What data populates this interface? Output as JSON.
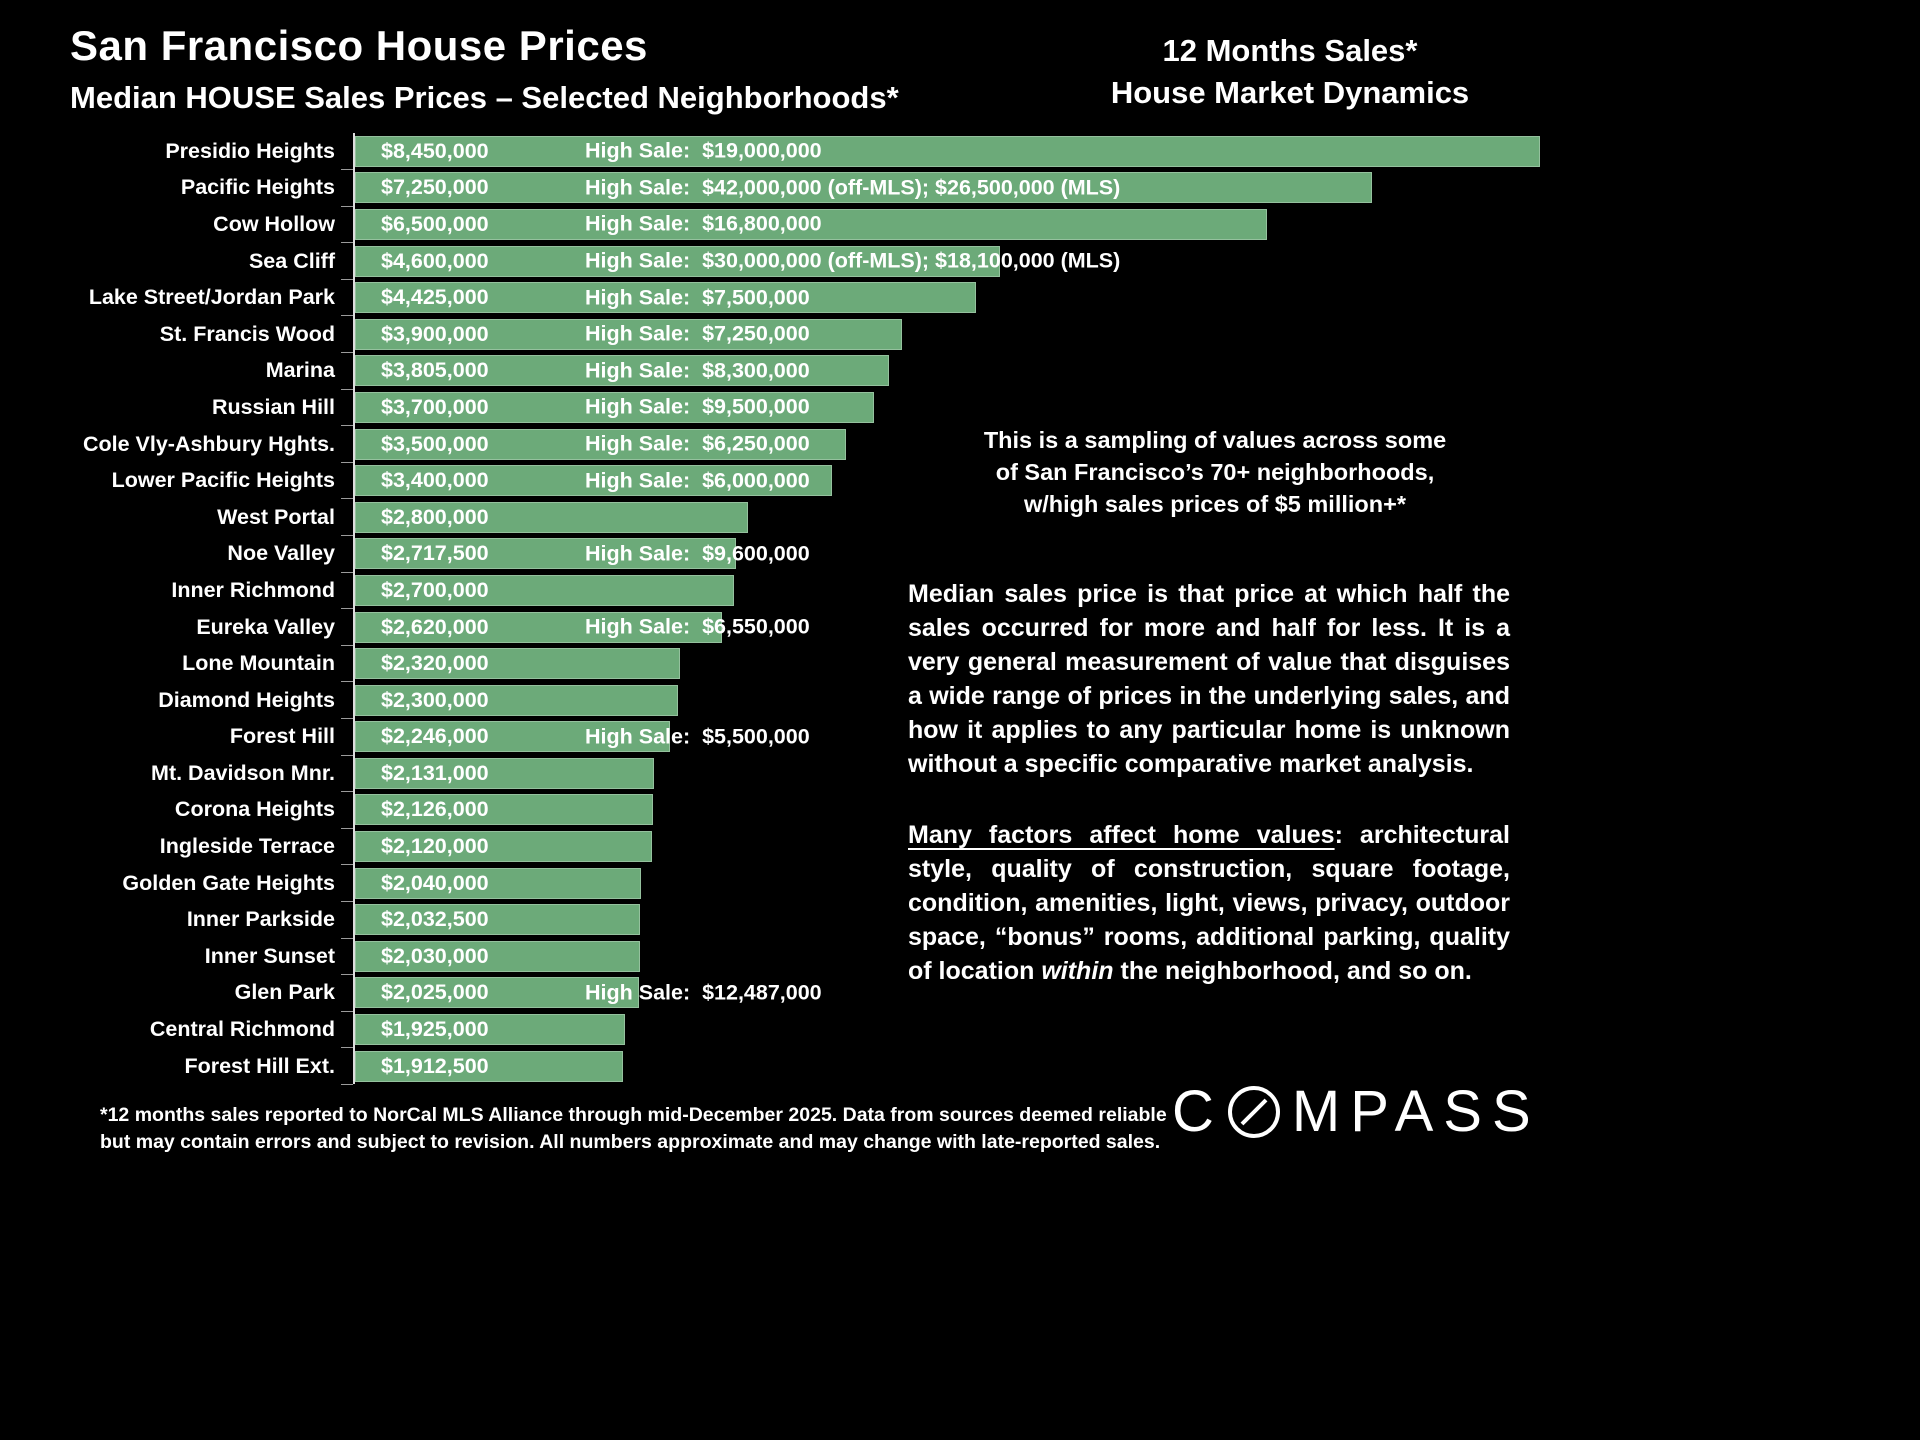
{
  "header": {
    "title": "San Francisco House Prices",
    "subtitle": "Median HOUSE Sales Prices – Selected Neighborhoods*",
    "right_line1": "12 Months Sales*",
    "right_line2": "House Market Dynamics"
  },
  "chart_data": {
    "type": "bar",
    "orientation": "horizontal",
    "title": "Median HOUSE Sales Prices – Selected Neighborhoods",
    "unit": "USD",
    "xlim": [
      0,
      8450000
    ],
    "bar_color": "#6caa79",
    "background": "#000000",
    "rows": [
      {
        "label": "Presidio Heights",
        "median": 8450000,
        "median_label": "$8,450,000",
        "high_sale": "High Sale:  $19,000,000"
      },
      {
        "label": "Pacific Heights",
        "median": 7250000,
        "median_label": "$7,250,000",
        "high_sale": "High Sale:  $42,000,000 (off-MLS); $26,500,000 (MLS)"
      },
      {
        "label": "Cow Hollow",
        "median": 6500000,
        "median_label": "$6,500,000",
        "high_sale": "High Sale:  $16,800,000"
      },
      {
        "label": "Sea Cliff",
        "median": 4600000,
        "median_label": "$4,600,000",
        "high_sale": "High Sale:  $30,000,000 (off-MLS); $18,100,000 (MLS)"
      },
      {
        "label": "Lake Street/Jordan Park",
        "median": 4425000,
        "median_label": "$4,425,000",
        "high_sale": "High Sale:  $7,500,000"
      },
      {
        "label": "St. Francis Wood",
        "median": 3900000,
        "median_label": "$3,900,000",
        "high_sale": "High Sale:  $7,250,000"
      },
      {
        "label": "Marina",
        "median": 3805000,
        "median_label": "$3,805,000",
        "high_sale": "High Sale:  $8,300,000"
      },
      {
        "label": "Russian Hill",
        "median": 3700000,
        "median_label": "$3,700,000",
        "high_sale": "High Sale:  $9,500,000"
      },
      {
        "label": "Cole Vly-Ashbury Hghts.",
        "median": 3500000,
        "median_label": "$3,500,000",
        "high_sale": "High Sale:  $6,250,000"
      },
      {
        "label": "Lower Pacific Heights",
        "median": 3400000,
        "median_label": "$3,400,000",
        "high_sale": "High Sale:  $6,000,000"
      },
      {
        "label": "West Portal",
        "median": 2800000,
        "median_label": "$2,800,000",
        "high_sale": null
      },
      {
        "label": "Noe Valley",
        "median": 2717500,
        "median_label": "$2,717,500",
        "high_sale": "High Sale:  $9,600,000"
      },
      {
        "label": "Inner Richmond",
        "median": 2700000,
        "median_label": "$2,700,000",
        "high_sale": null
      },
      {
        "label": "Eureka Valley",
        "median": 2620000,
        "median_label": "$2,620,000",
        "high_sale": "High Sale:  $6,550,000"
      },
      {
        "label": "Lone Mountain",
        "median": 2320000,
        "median_label": "$2,320,000",
        "high_sale": null
      },
      {
        "label": "Diamond Heights",
        "median": 2300000,
        "median_label": "$2,300,000",
        "high_sale": null
      },
      {
        "label": "Forest Hill",
        "median": 2246000,
        "median_label": "$2,246,000",
        "high_sale": "High Sale:  $5,500,000"
      },
      {
        "label": "Mt. Davidson Mnr.",
        "median": 2131000,
        "median_label": "$2,131,000",
        "high_sale": null
      },
      {
        "label": "Corona Heights",
        "median": 2126000,
        "median_label": "$2,126,000",
        "high_sale": null
      },
      {
        "label": "Ingleside Terrace",
        "median": 2120000,
        "median_label": "$2,120,000",
        "high_sale": null
      },
      {
        "label": "Golden Gate Heights",
        "median": 2040000,
        "median_label": "$2,040,000",
        "high_sale": null
      },
      {
        "label": "Inner Parkside",
        "median": 2032500,
        "median_label": "$2,032,500",
        "high_sale": null
      },
      {
        "label": "Inner Sunset",
        "median": 2030000,
        "median_label": "$2,030,000",
        "high_sale": null
      },
      {
        "label": "Glen Park",
        "median": 2025000,
        "median_label": "$2,025,000",
        "high_sale": "High Sale:  $12,487,000"
      },
      {
        "label": "Central Richmond",
        "median": 1925000,
        "median_label": "$1,925,000",
        "high_sale": null
      },
      {
        "label": "Forest Hill Ext.",
        "median": 1912500,
        "median_label": "$1,912,500",
        "high_sale": null
      }
    ]
  },
  "annotations": {
    "sampling_line1": "This is a sampling of values across some",
    "sampling_line2": "of San Francisco’s 70+ neighborhoods,",
    "sampling_line3": "w/high sales prices of $5 million+*",
    "median_explainer": "Median sales price is that price at which half the sales occurred for more and half for less. It is a very general measurement of value that disguises a wide range of prices in the underlying sales, and how it applies to any particular home is unknown without a specific comparative market analysis.",
    "factors_lead": "Many factors affect home values",
    "factors_mid": ": architectural style, quality of construction, square footage, condition, amenities, light, views, privacy, outdoor space, “bonus” rooms, additional parking, quality of location ",
    "factors_italic": "within",
    "factors_end": " the neighborhood, and so on."
  },
  "footnote": {
    "line1": "*12 months sales reported to NorCal MLS Alliance through mid-December 2025. Data from sources deemed reliable",
    "line2": "but may contain errors and subject to revision. All numbers approximate and may change with late-reported sales."
  },
  "logo": {
    "text": "COMPASS",
    "prefix": "C",
    "suffix": "MPASS"
  }
}
